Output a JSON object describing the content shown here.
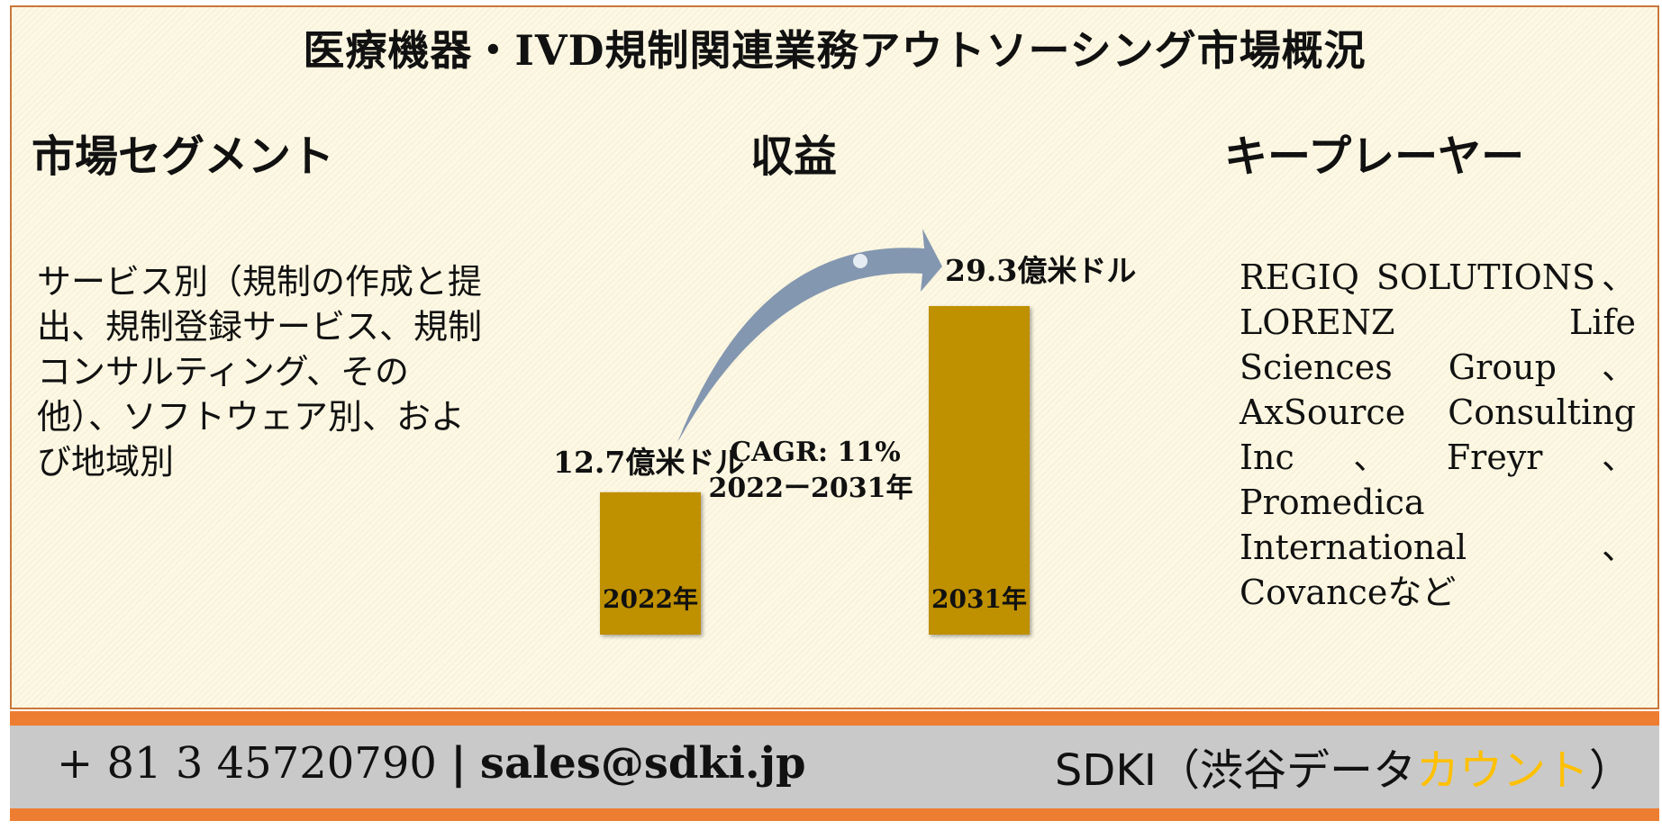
{
  "title": "医療機器・IVD規制関連業務アウトソーシング市場概況",
  "headings": {
    "segments": "市場セグメント",
    "revenue": "収益",
    "players": "キープレーヤー"
  },
  "segments_text": "サービス別（規制の作成と提出、規制登録サービス、規制コンサルティング、その他）、ソフトウェア別、および地域別",
  "players_text": "REGIQ SOLUTIONS、LORENZ Life Sciences Group、AxSource Consulting Inc、Freyr、Promedica International、Covanceなど",
  "chart_data": {
    "type": "bar",
    "categories": [
      "2022年",
      "2031年"
    ],
    "values": [
      12.7,
      29.3
    ],
    "value_labels": [
      "12.7億米ドル",
      "29.3億米ドル"
    ],
    "unit": "億米ドル",
    "cagr_label": "CAGR: 11%",
    "cagr_period": "2022ー2031年",
    "bar_color": "#bf9000",
    "arrow_color": "#8497b0"
  },
  "footer": {
    "phone": "+ 81 3 45720790",
    "separator": "|",
    "email": "sales@sdki.jp",
    "brand_prefix": "SDKI（渋谷データ",
    "brand_highlight": "カウント",
    "brand_suffix": "）",
    "highlight_color": "#ffc000"
  }
}
